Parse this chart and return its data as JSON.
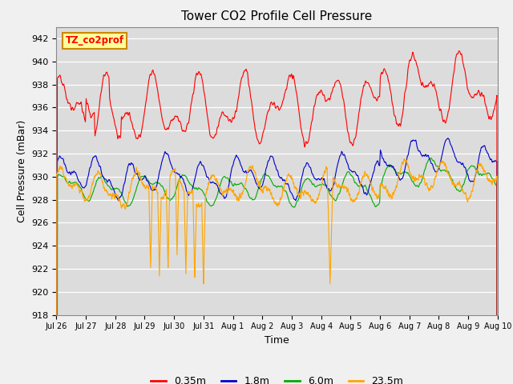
{
  "title": "Tower CO2 Profile Cell Pressure",
  "xlabel": "Time",
  "ylabel": "Cell Pressure (mBar)",
  "ylim": [
    918,
    943
  ],
  "yticks": [
    918,
    920,
    922,
    924,
    926,
    928,
    930,
    932,
    934,
    936,
    938,
    940,
    942
  ],
  "xtick_labels": [
    "Jul 26",
    "Jul 27",
    "Jul 28",
    "Jul 29",
    "Jul 30",
    "Jul 31",
    "Aug 1",
    "Aug 2",
    "Aug 3",
    "Aug 4",
    "Aug 5",
    "Aug 6",
    "Aug 7",
    "Aug 8",
    "Aug 9",
    "Aug 10"
  ],
  "colors": {
    "0.35m": "#FF0000",
    "1.8m": "#0000CC",
    "6.0m": "#00AA00",
    "23.5m": "#FFA500"
  },
  "legend_label": "TZ_co2prof",
  "legend_box_facecolor": "#FFFF99",
  "legend_box_edgecolor": "#CC8800",
  "fig_facecolor": "#F0F0F0",
  "plot_bg_color": "#DCDCDC",
  "grid_color": "#FFFFFF",
  "linewidth": 0.8,
  "series_labels": [
    "0.35m",
    "1.8m",
    "6.0m",
    "23.5m"
  ]
}
